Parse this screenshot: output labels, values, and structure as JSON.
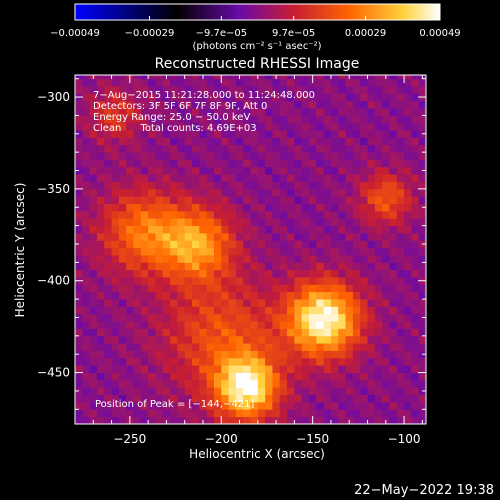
{
  "chart_data": {
    "type": "heatmap",
    "title": "Reconstructed RHESSI Image",
    "xlabel": "Heliocentric X (arcsec)",
    "ylabel": "Heliocentric Y (arcsec)",
    "xlim": [
      -280,
      -88
    ],
    "ylim": [
      -478,
      -288
    ],
    "x_ticks": [
      {
        "value": -250,
        "label": "−250"
      },
      {
        "value": -200,
        "label": "−200"
      },
      {
        "value": -150,
        "label": "−150"
      },
      {
        "value": -100,
        "label": "−100"
      }
    ],
    "y_ticks": [
      {
        "value": -300,
        "label": "−300"
      },
      {
        "value": -350,
        "label": "−350"
      },
      {
        "value": -400,
        "label": "−400"
      },
      {
        "value": -450,
        "label": "−450"
      }
    ],
    "colorbar": {
      "range": [
        -0.00049,
        0.00049
      ],
      "ticks": [
        {
          "value": -0.00049,
          "label": "−0.00049"
        },
        {
          "value": -0.00029,
          "label": "−0.00029"
        },
        {
          "value": -9.7e-05,
          "label": "−9.7e−05"
        },
        {
          "value": 9.7e-05,
          "label": "9.7e−05"
        },
        {
          "value": 0.00029,
          "label": "0.00029"
        },
        {
          "value": 0.00049,
          "label": "0.00049"
        }
      ],
      "colors": [
        "#0000ff",
        "#000000",
        "#6a0aa8",
        "#c81e32",
        "#ff6400",
        "#ffd23c",
        "#ffffff"
      ]
    },
    "annotations": {
      "line1": "7−Aug−2015 11:21:28.000 to 11:24:48.000",
      "line2": "Detectors: 3F 5F 6F 7F 8F 9F, Att 0",
      "line3": "Energy Range: 25.0 − 50.0 keV",
      "line4": "Clean      Total counts: 4.69E+03",
      "peak": "Position of Peak = [−144,−421]"
    },
    "peak": {
      "x": -144,
      "y": -421
    },
    "sources": [
      {
        "x": -144,
        "y": -421,
        "sigma": 14,
        "value": 0.00049
      },
      {
        "x": -186,
        "y": -458,
        "sigma": 12,
        "value": 0.00045
      },
      {
        "x": -213,
        "y": -380,
        "sigma": 14,
        "value": 0.00031
      },
      {
        "x": -243,
        "y": -373,
        "sigma": 16,
        "value": 0.00026
      },
      {
        "x": -110,
        "y": -355,
        "sigma": 10,
        "value": 0.00021
      },
      {
        "x": -258,
        "y": -310,
        "sigma": 10,
        "value": 0.00015
      },
      {
        "x": -200,
        "y": -430,
        "sigma": 22,
        "value": 0.0002
      }
    ]
  },
  "footer": {
    "colorbar_units": "(photons cm⁻² s⁻¹ asec⁻²)",
    "date": "22−May−2022 19:38"
  }
}
